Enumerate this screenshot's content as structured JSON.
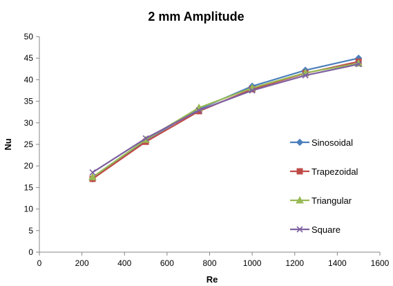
{
  "chart_data": {
    "type": "line",
    "title": "2 mm Amplitude",
    "xlabel": "Re",
    "ylabel": "Nu",
    "xlim": [
      0,
      1600
    ],
    "ylim": [
      0,
      50
    ],
    "xticks": [
      0,
      200,
      400,
      600,
      800,
      1000,
      1200,
      1400,
      1600
    ],
    "yticks": [
      0,
      5,
      10,
      15,
      20,
      25,
      30,
      35,
      40,
      45,
      50
    ],
    "grid": false,
    "legend_position": "right",
    "x": [
      250,
      500,
      750,
      1000,
      1250,
      1500
    ],
    "series": [
      {
        "name": "Sinosoidal",
        "color": "#4a7ebb",
        "marker": "diamond",
        "values": [
          17.0,
          26.0,
          33.2,
          38.5,
          42.2,
          45.0
        ]
      },
      {
        "name": "Trapezoidal",
        "color": "#be4b48",
        "marker": "square",
        "values": [
          17.0,
          25.6,
          32.7,
          37.8,
          41.5,
          44.2
        ]
      },
      {
        "name": "Triangular",
        "color": "#98b954",
        "marker": "triangle",
        "values": [
          17.4,
          26.1,
          33.5,
          38.1,
          41.6,
          43.8
        ]
      },
      {
        "name": "Square",
        "color": "#7d60a0",
        "marker": "x",
        "values": [
          18.5,
          26.4,
          32.9,
          37.5,
          41.0,
          43.6
        ]
      }
    ]
  }
}
